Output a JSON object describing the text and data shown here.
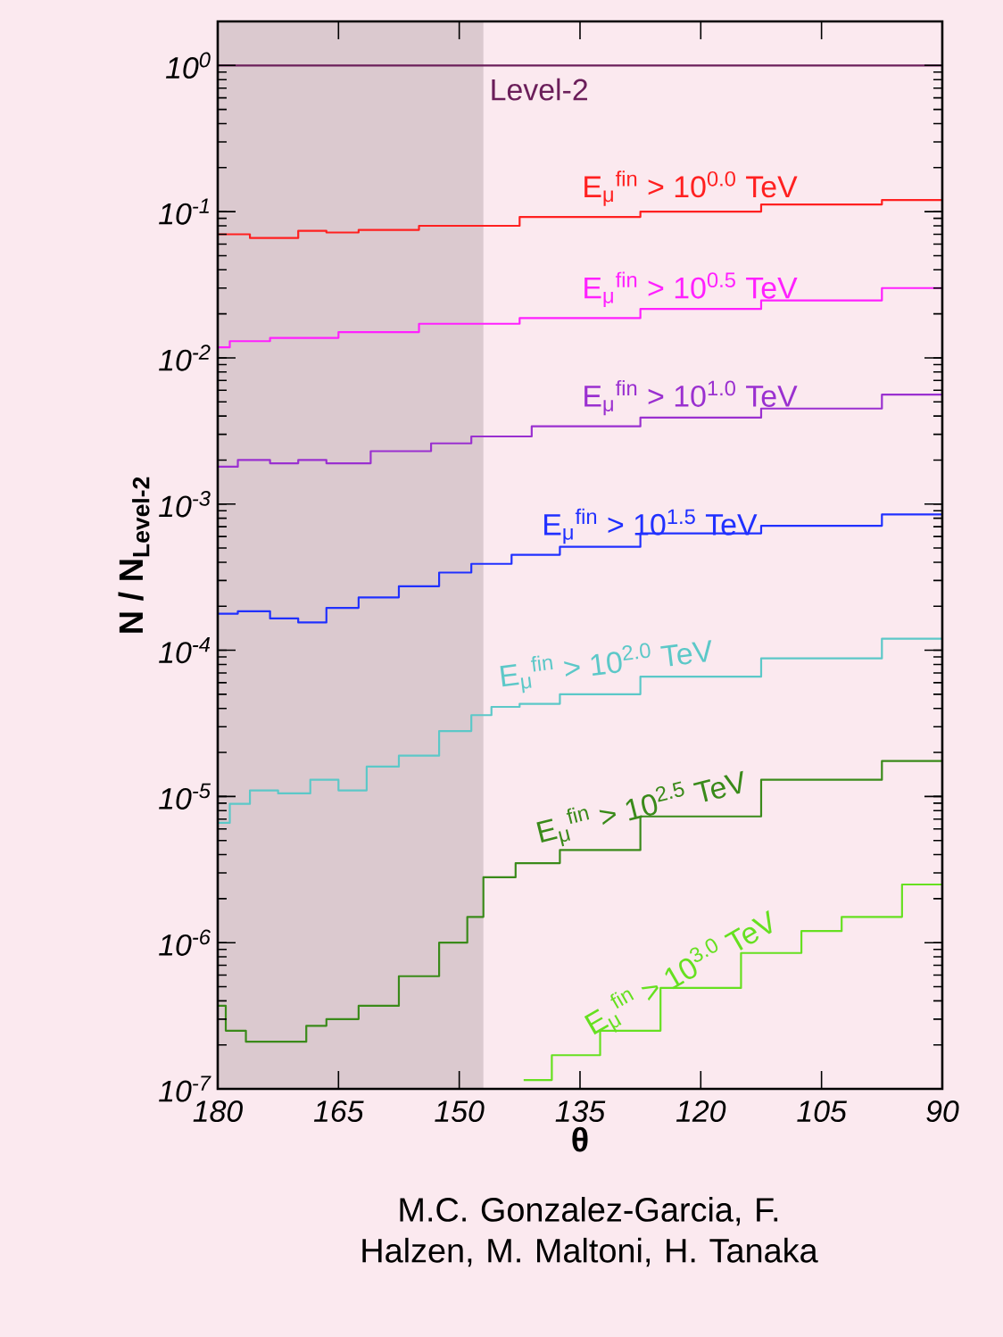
{
  "chart_data": {
    "type": "step",
    "xlabel": "θ",
    "ylabel": "N / N$_{Level-2}$",
    "log": "y",
    "xlim": [
      180,
      90
    ],
    "xticks": [
      180,
      165,
      150,
      135,
      120,
      105,
      90
    ],
    "ylim": [
      1e-07,
      2
    ],
    "yticks": [
      {
        "value": 1e-07,
        "label": "10$^{-7}$"
      },
      {
        "value": 1e-06,
        "label": "10$^{-6}$"
      },
      {
        "value": 1e-05,
        "label": "10$^{-5}$"
      },
      {
        "value": 0.0001,
        "label": "10$^{-4}$"
      },
      {
        "value": 0.001,
        "label": "10$^{-3}$"
      },
      {
        "value": 0.01,
        "label": "10$^{-2}$"
      },
      {
        "value": 0.1,
        "label": "10$^{-1}$"
      },
      {
        "value": 1,
        "label": "10$^{0}$"
      }
    ],
    "bands": [
      {
        "axis": "x",
        "from": 180,
        "to": 147,
        "color": "#dbc9cf"
      }
    ],
    "annotations": [
      "M.C. Gonzalez-Garcia, F. Halzen, M. Maltoni, H. Tanaka"
    ],
    "series": [
      {
        "name": "Level-2",
        "color": "#6b1e5a",
        "x": [
          180,
          90
        ],
        "values": [
          1,
          1
        ]
      },
      {
        "name": "E$_{μ}$$^{fin}$ > 10$^{0.0}$ TeV",
        "color": "#ff2020",
        "x": [
          180,
          172,
          168,
          165,
          160,
          150,
          135,
          120,
          105,
          90
        ],
        "values": [
          0.07,
          0.066,
          0.074,
          0.072,
          0.075,
          0.08,
          0.092,
          0.1,
          0.112,
          0.12
        ]
      },
      {
        "name": "E$_{μ}$$^{fin}$ > 10$^{0.5}$ TeV",
        "color": "#ff20ff",
        "x": [
          180,
          177,
          170,
          160,
          150,
          135,
          120,
          105,
          90
        ],
        "values": [
          0.0118,
          0.013,
          0.0137,
          0.015,
          0.0171,
          0.0187,
          0.0216,
          0.0247,
          0.03
        ]
      },
      {
        "name": "E$_{μ}$$^{fin}$ > 10$^{1.0}$ TeV",
        "color": "#9a30d0",
        "x": [
          180,
          175,
          172,
          168,
          165,
          157,
          150,
          147,
          135,
          120,
          105,
          90
        ],
        "values": [
          0.0018,
          0.002,
          0.0019,
          0.002,
          0.0019,
          0.0023,
          0.0026,
          0.0029,
          0.0034,
          0.0039,
          0.0045,
          0.0056
        ]
      },
      {
        "name": "E$_{μ}$$^{fin}$ > 10$^{1.5}$ TeV",
        "color": "#2030ff",
        "x": [
          180,
          175,
          172,
          168,
          165,
          160,
          155,
          150,
          147,
          140,
          135,
          120,
          105,
          90
        ],
        "values": [
          0.000178,
          0.000185,
          0.000165,
          0.000155,
          0.000195,
          0.00023,
          0.000274,
          0.00034,
          0.00039,
          0.00045,
          0.00051,
          0.00063,
          0.00071,
          0.00085
        ]
      },
      {
        "name": "E$_{μ}$$^{fin}$ > 10$^{2.0}$ TeV",
        "color": "#5cc8c8",
        "x": [
          180,
          177,
          175,
          170,
          167,
          163,
          160,
          155,
          150,
          147,
          145,
          140,
          135,
          120,
          105,
          90
        ],
        "values": [
          6.6e-06,
          8.9e-06,
          1.1e-05,
          1.05e-05,
          1.3e-05,
          1.1e-05,
          1.6e-05,
          1.9e-05,
          2.8e-05,
          3.6e-05,
          4.1e-05,
          4.3e-05,
          5e-05,
          6.6e-05,
          8.8e-05,
          0.00012
        ]
      },
      {
        "name": "E$_{μ}$$^{fin}$ > 10$^{2.5}$ TeV",
        "color": "#3a8a1a",
        "x": [
          180,
          178,
          175,
          170,
          168,
          165,
          160,
          155,
          150,
          148,
          146,
          140,
          135,
          120,
          105,
          90
        ],
        "values": [
          3.7e-07,
          2.5e-07,
          2.1e-07,
          2.1e-07,
          2.7e-07,
          3e-07,
          3.7e-07,
          5.9e-07,
          1e-06,
          1.5e-06,
          2.8e-06,
          3.5e-06,
          4.3e-06,
          7.3e-06,
          1.3e-05,
          1.75e-05
        ]
      },
      {
        "name": "E$_{μ}$$^{fin}$ > 10$^{3.0}$ TeV",
        "color": "#66e020",
        "x": [
          142,
          135,
          130,
          120,
          110,
          105,
          100,
          90
        ],
        "values": [
          1.15e-07,
          1.7e-07,
          2.5e-07,
          4.9e-07,
          8.5e-07,
          1.2e-06,
          1.5e-06,
          2.5e-06
        ]
      }
    ]
  }
}
